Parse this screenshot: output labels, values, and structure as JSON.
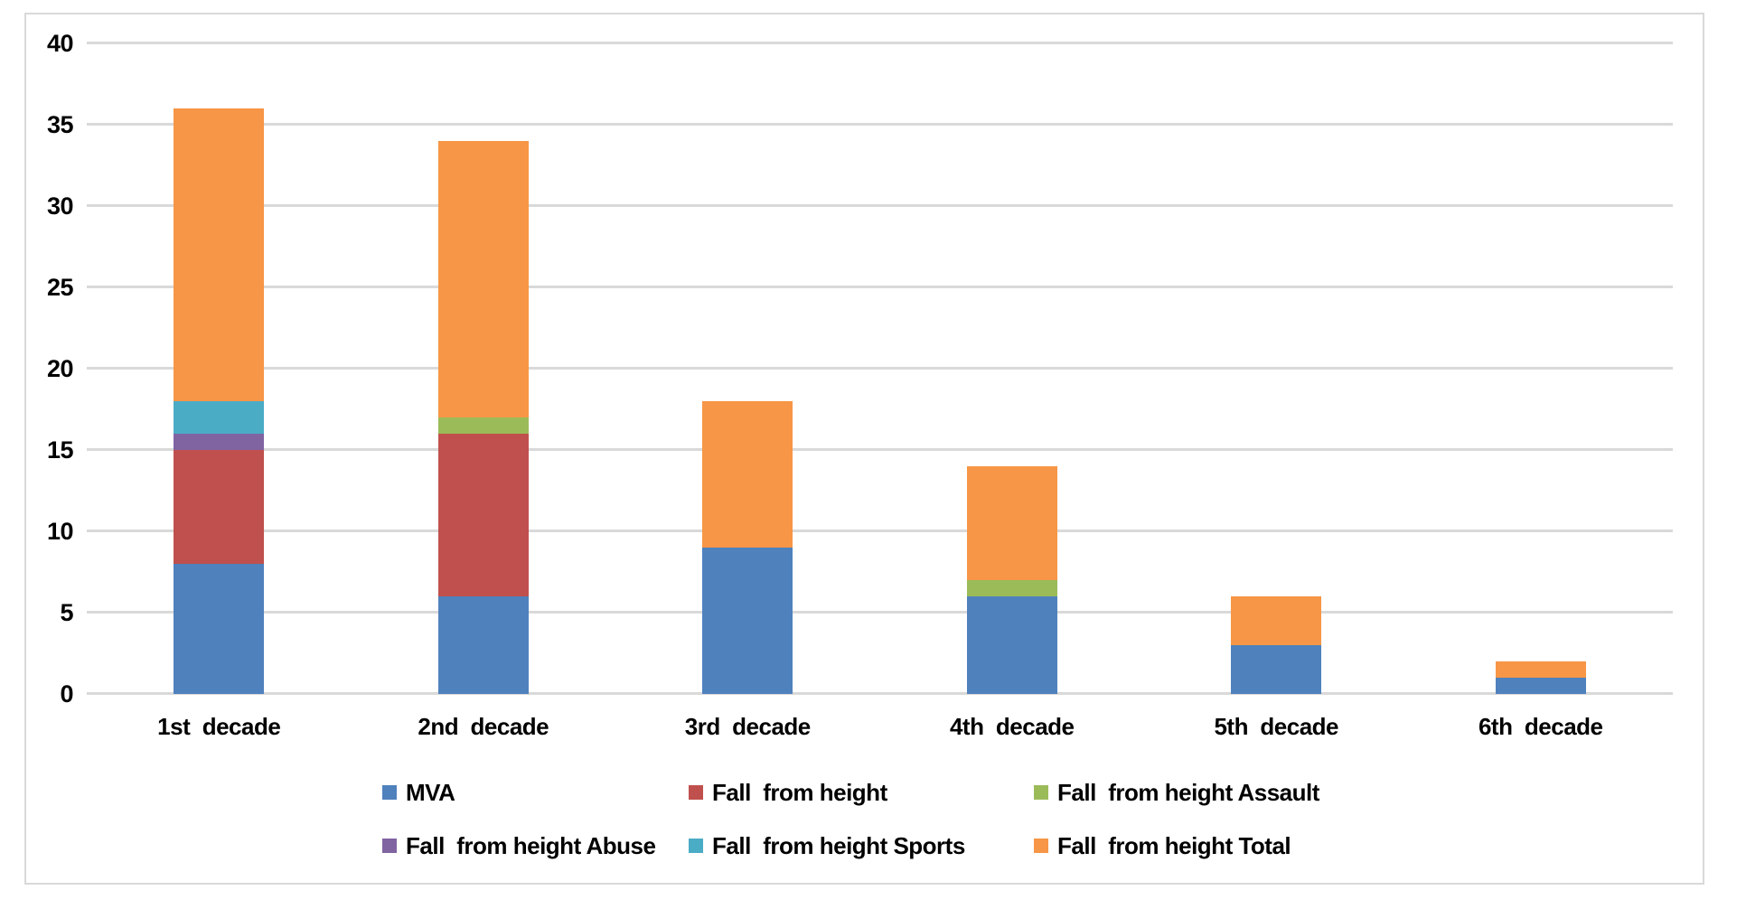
{
  "chart_data": {
    "type": "bar",
    "stacked": true,
    "title": "",
    "xlabel": "",
    "ylabel": "",
    "categories": [
      "1st  decade",
      "2nd  decade",
      "3rd  decade",
      "4th  decade",
      "5th  decade",
      "6th  decade"
    ],
    "series": [
      {
        "name": "MVA",
        "color": "#4F81BD",
        "values": [
          8,
          6,
          9,
          6,
          3,
          1
        ]
      },
      {
        "name": "Fall  from height",
        "color": "#C0504D",
        "values": [
          7,
          10,
          0,
          0,
          0,
          0
        ]
      },
      {
        "name": "Fall  from height Assault",
        "color": "#9BBB59",
        "values": [
          0,
          1,
          0,
          1,
          0,
          0
        ]
      },
      {
        "name": "Fall  from height Abuse",
        "color": "#8064A2",
        "values": [
          1,
          0,
          0,
          0,
          0,
          0
        ]
      },
      {
        "name": "Fall  from height Sports",
        "color": "#4BACC6",
        "values": [
          2,
          0,
          0,
          0,
          0,
          0
        ]
      },
      {
        "name": "Fall  from height Total",
        "color": "#F79646",
        "values": [
          18,
          17,
          9,
          7,
          3,
          1
        ]
      }
    ],
    "stack_totals": [
      36,
      34,
      18,
      14,
      6,
      2
    ],
    "ylim": [
      0,
      40
    ],
    "yticks": [
      0,
      5,
      10,
      15,
      20,
      25,
      30,
      35,
      40
    ],
    "grid": true,
    "legend_position": "bottom",
    "legend_rows": [
      [
        0,
        1,
        2
      ],
      [
        3,
        4,
        5
      ]
    ]
  },
  "style": {
    "background": "#FFFFFF",
    "frame_border": "#D9D9D9",
    "gridline": "#D9D9D9",
    "text": "#000000"
  }
}
